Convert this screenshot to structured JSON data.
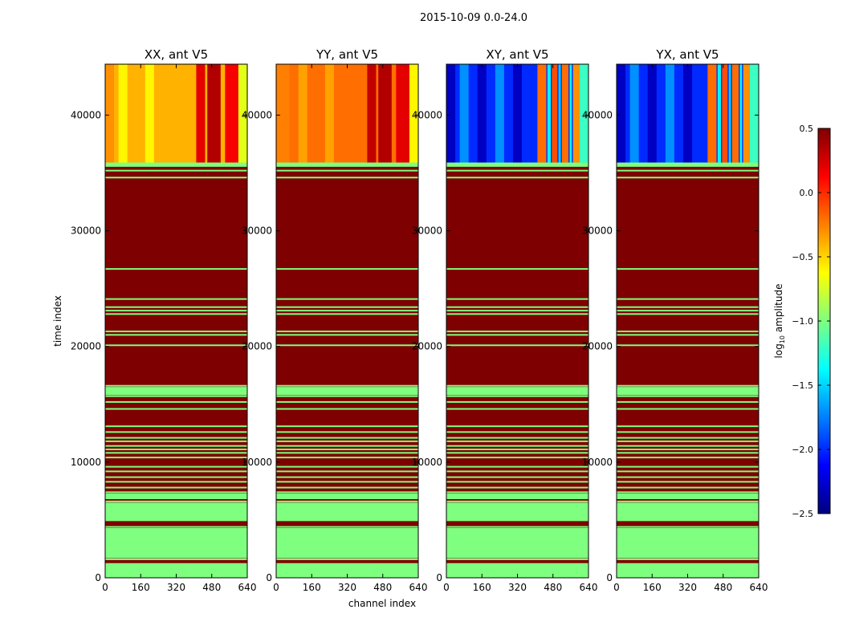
{
  "figure_title": "2015-10-09 0.0-24.0",
  "colormap": {
    "name": "jet",
    "stops": [
      "#00007f",
      "#0000ff",
      "#007fff",
      "#00ffff",
      "#7fff7f",
      "#ffff00",
      "#ff7f00",
      "#ff0000",
      "#7f0000"
    ]
  },
  "chart_data": [
    {
      "type": "heatmap",
      "title": "XX, ant V5",
      "xlabel": "",
      "ylabel": "time index",
      "xlim": [
        0,
        640
      ],
      "ylim": [
        0,
        44400
      ],
      "xticks": [
        "0",
        "160",
        "320",
        "480",
        "640"
      ],
      "yticks": [
        "0",
        "10000",
        "20000",
        "30000",
        "40000"
      ],
      "top_region": {
        "y_range": [
          35900,
          44400
        ],
        "base_value": -0.4,
        "bands": [
          {
            "x": [
              0,
              40
            ],
            "value": -0.3
          },
          {
            "x": [
              60,
              100
            ],
            "value": -0.6
          },
          {
            "x": [
              180,
              220
            ],
            "value": -0.6
          },
          {
            "x": [
              410,
              450
            ],
            "value": 0.2
          },
          {
            "x": [
              460,
              520
            ],
            "value": 0.35
          },
          {
            "x": [
              540,
              600
            ],
            "value": 0.15
          }
        ],
        "right_band": {
          "x": [
            600,
            640
          ],
          "value": -0.7
        }
      },
      "gap_value": -1.0,
      "flagged_value": 0.5
    },
    {
      "type": "heatmap",
      "title": "YY, ant V5",
      "xlabel": "",
      "ylabel": "",
      "xlim": [
        0,
        640
      ],
      "ylim": [
        0,
        44400
      ],
      "xticks": [
        "0",
        "160",
        "320",
        "480",
        "640"
      ],
      "yticks": [
        "0",
        "10000",
        "20000",
        "30000",
        "40000"
      ],
      "top_region": {
        "y_range": [
          35900,
          44400
        ],
        "base_value": -0.2,
        "bands": [
          {
            "x": [
              0,
              60
            ],
            "value": -0.25
          },
          {
            "x": [
              100,
              140
            ],
            "value": -0.35
          },
          {
            "x": [
              220,
              260
            ],
            "value": -0.35
          },
          {
            "x": [
              410,
              450
            ],
            "value": 0.3
          },
          {
            "x": [
              460,
              520
            ],
            "value": 0.35
          },
          {
            "x": [
              540,
              600
            ],
            "value": 0.2
          }
        ],
        "right_band": {
          "x": [
            600,
            640
          ],
          "value": -0.6
        }
      },
      "gap_value": -1.0,
      "flagged_value": 0.5
    },
    {
      "type": "heatmap",
      "title": "XY, ant V5",
      "xlabel": "channel index",
      "ylabel": "",
      "xlim": [
        0,
        640
      ],
      "ylim": [
        0,
        44400
      ],
      "xticks": [
        "0",
        "160",
        "320",
        "480",
        "640"
      ],
      "yticks": [
        "0",
        "10000",
        "20000",
        "30000",
        "40000"
      ],
      "top_region": {
        "y_range": [
          35900,
          44400
        ],
        "base_value": -2.0,
        "bands": [
          {
            "x": [
              0,
              40
            ],
            "value": -2.3
          },
          {
            "x": [
              60,
              100
            ],
            "value": -1.7
          },
          {
            "x": [
              140,
              180
            ],
            "value": -2.3
          },
          {
            "x": [
              220,
              260
            ],
            "value": -1.7
          },
          {
            "x": [
              300,
              340
            ],
            "value": -2.3
          },
          {
            "x": [
              410,
              450
            ],
            "value": -0.2
          },
          {
            "x": [
              455,
              470
            ],
            "value": -1.4
          },
          {
            "x": [
              475,
              500
            ],
            "value": -0.1
          },
          {
            "x": [
              505,
              515
            ],
            "value": -1.5
          },
          {
            "x": [
              520,
              550
            ],
            "value": -0.2
          },
          {
            "x": [
              555,
              565
            ],
            "value": -1.4
          },
          {
            "x": [
              570,
              600
            ],
            "value": -0.3
          }
        ],
        "right_band": {
          "x": [
            600,
            640
          ],
          "value": -1.2
        }
      },
      "gap_value": -1.0,
      "flagged_value": 0.5
    },
    {
      "type": "heatmap",
      "title": "YX, ant V5",
      "xlabel": "",
      "ylabel": "",
      "xlim": [
        0,
        640
      ],
      "ylim": [
        0,
        44400
      ],
      "xticks": [
        "0",
        "160",
        "320",
        "480",
        "640"
      ],
      "yticks": [
        "0",
        "10000",
        "20000",
        "30000",
        "40000"
      ],
      "top_region": {
        "y_range": [
          35900,
          44400
        ],
        "base_value": -2.0,
        "bands": [
          {
            "x": [
              0,
              40
            ],
            "value": -2.3
          },
          {
            "x": [
              60,
              100
            ],
            "value": -1.7
          },
          {
            "x": [
              140,
              180
            ],
            "value": -2.3
          },
          {
            "x": [
              220,
              260
            ],
            "value": -1.7
          },
          {
            "x": [
              300,
              340
            ],
            "value": -2.3
          },
          {
            "x": [
              410,
              450
            ],
            "value": -0.2
          },
          {
            "x": [
              455,
              470
            ],
            "value": -1.4
          },
          {
            "x": [
              475,
              500
            ],
            "value": -0.1
          },
          {
            "x": [
              505,
              515
            ],
            "value": -1.5
          },
          {
            "x": [
              520,
              550
            ],
            "value": -0.2
          },
          {
            "x": [
              555,
              565
            ],
            "value": -1.4
          },
          {
            "x": [
              570,
              600
            ],
            "value": -0.3
          }
        ],
        "right_band": {
          "x": [
            600,
            640
          ],
          "value": -1.2
        }
      },
      "gap_value": -1.0,
      "flagged_value": 0.5
    }
  ],
  "gap_lines_time_index": [
    35600,
    35200,
    34600,
    26700,
    24100,
    23400,
    23100,
    22800,
    21300,
    21000,
    20100,
    16600,
    15700,
    15200,
    14600,
    13100,
    12600,
    12100,
    11800,
    11400,
    11100,
    10800,
    10400,
    9600,
    9200,
    8700,
    8300,
    7800,
    7400,
    6600,
    5300,
    4400,
    3600,
    3000,
    2500,
    1600,
    1200,
    500,
    100
  ],
  "gap_bands_time_index": [
    [
      0,
      1200
    ],
    [
      1700,
      4300
    ],
    [
      4900,
      6500
    ],
    [
      6800,
      7300
    ],
    [
      15800,
      16500
    ]
  ],
  "colorbar": {
    "label_main": "log",
    "label_sub": "10",
    "label_tail": " amplitude",
    "range": [
      -2.5,
      0.5
    ],
    "ticks": [
      "0.5",
      "0.0",
      "−0.5",
      "−1.0",
      "−1.5",
      "−2.0",
      "−2.5"
    ]
  }
}
